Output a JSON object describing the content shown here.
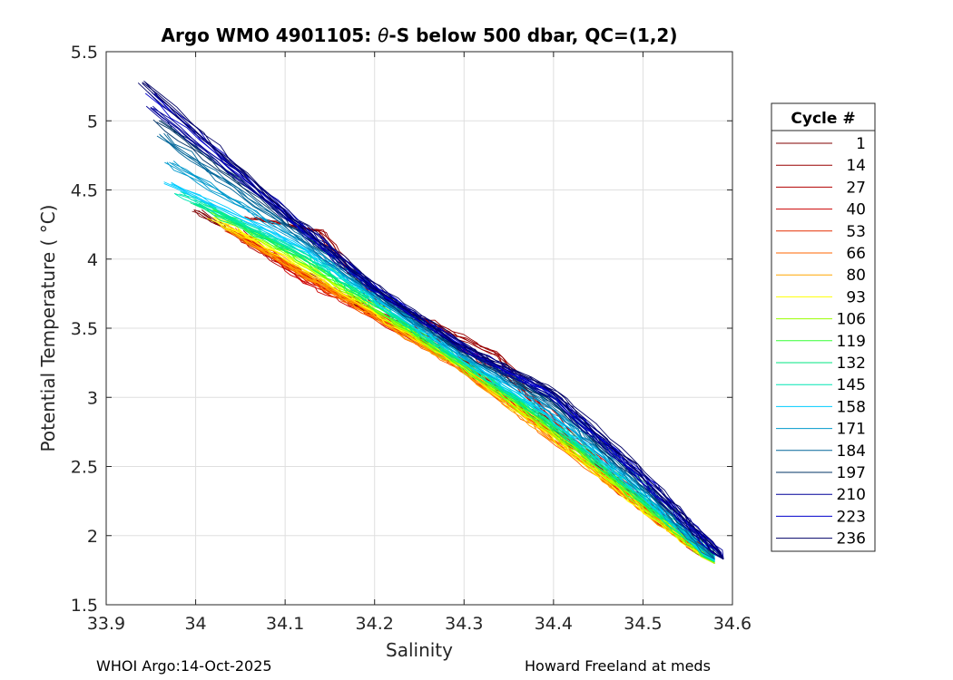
{
  "chart_data": {
    "type": "line",
    "title_prefix": "Argo WMO 4901105: ",
    "title_symbol": "θ",
    "title_suffix": "-S below 500 dbar,  QC=(1,2)",
    "xlabel": "Salinity",
    "ylabel": "Potential Temperature ( °C)",
    "xlim": [
      33.9,
      34.6
    ],
    "ylim": [
      1.5,
      5.5
    ],
    "xticks": [
      33.9,
      34,
      34.1,
      34.2,
      34.3,
      34.4,
      34.5,
      34.6
    ],
    "xtick_labels": [
      "33.9",
      "34",
      "34.1",
      "34.2",
      "34.3",
      "34.4",
      "34.5",
      "34.6"
    ],
    "yticks": [
      1.5,
      2,
      2.5,
      3,
      3.5,
      4,
      4.5,
      5,
      5.5
    ],
    "ytick_labels": [
      "1.5",
      "2",
      "2.5",
      "3",
      "3.5",
      "4",
      "4.5",
      "5",
      "5.5"
    ],
    "grid": true,
    "legend_title": "Cycle #",
    "legend_position": "right-outside",
    "series": [
      {
        "name": "1",
        "color": "#800000",
        "points": [
          [
            34.0,
            4.35
          ],
          [
            34.08,
            4.05
          ],
          [
            34.2,
            3.6
          ],
          [
            34.3,
            3.25
          ],
          [
            34.4,
            2.75
          ],
          [
            34.5,
            2.25
          ],
          [
            34.58,
            1.82
          ]
        ]
      },
      {
        "name": "14",
        "color": "#990000",
        "points": [
          [
            34.06,
            4.3
          ],
          [
            34.14,
            4.2
          ],
          [
            34.2,
            3.7
          ],
          [
            34.26,
            3.55
          ],
          [
            34.34,
            3.3
          ],
          [
            34.4,
            2.78
          ],
          [
            34.5,
            2.25
          ],
          [
            34.58,
            1.82
          ]
        ]
      },
      {
        "name": "27",
        "color": "#b30000",
        "points": [
          [
            34.05,
            4.15
          ],
          [
            34.1,
            3.95
          ],
          [
            34.2,
            3.62
          ],
          [
            34.3,
            3.35
          ],
          [
            34.35,
            3.15
          ],
          [
            34.45,
            2.55
          ],
          [
            34.58,
            1.8
          ]
        ]
      },
      {
        "name": "40",
        "color": "#cc0000",
        "points": [
          [
            34.05,
            4.2
          ],
          [
            34.12,
            3.85
          ],
          [
            34.2,
            3.58
          ],
          [
            34.3,
            3.22
          ],
          [
            34.4,
            2.75
          ],
          [
            34.5,
            2.22
          ],
          [
            34.58,
            1.8
          ]
        ]
      },
      {
        "name": "53",
        "color": "#e62e00",
        "points": [
          [
            34.04,
            4.2
          ],
          [
            34.12,
            3.9
          ],
          [
            34.2,
            3.6
          ],
          [
            34.3,
            3.2
          ],
          [
            34.4,
            2.72
          ],
          [
            34.5,
            2.2
          ],
          [
            34.58,
            1.8
          ]
        ]
      },
      {
        "name": "66",
        "color": "#ff6600",
        "points": [
          [
            34.04,
            4.22
          ],
          [
            34.12,
            3.88
          ],
          [
            34.2,
            3.58
          ],
          [
            34.3,
            3.2
          ],
          [
            34.4,
            2.7
          ],
          [
            34.5,
            2.2
          ],
          [
            34.58,
            1.8
          ]
        ]
      },
      {
        "name": "80",
        "color": "#ffa500",
        "points": [
          [
            34.03,
            4.25
          ],
          [
            34.12,
            3.9
          ],
          [
            34.2,
            3.6
          ],
          [
            34.3,
            3.2
          ],
          [
            34.4,
            2.7
          ],
          [
            34.5,
            2.2
          ],
          [
            34.58,
            1.8
          ]
        ]
      },
      {
        "name": "93",
        "color": "#ffff00",
        "points": [
          [
            34.02,
            4.3
          ],
          [
            34.12,
            3.95
          ],
          [
            34.2,
            3.62
          ],
          [
            34.3,
            3.22
          ],
          [
            34.4,
            2.72
          ],
          [
            34.5,
            2.2
          ],
          [
            34.58,
            1.8
          ]
        ]
      },
      {
        "name": "106",
        "color": "#99ff00",
        "points": [
          [
            34.02,
            4.35
          ],
          [
            34.12,
            3.98
          ],
          [
            34.2,
            3.64
          ],
          [
            34.3,
            3.22
          ],
          [
            34.4,
            2.75
          ],
          [
            34.5,
            2.22
          ],
          [
            34.58,
            1.8
          ]
        ]
      },
      {
        "name": "119",
        "color": "#33ff33",
        "points": [
          [
            34.01,
            4.4
          ],
          [
            34.12,
            4.0
          ],
          [
            34.2,
            3.66
          ],
          [
            34.3,
            3.24
          ],
          [
            34.4,
            2.78
          ],
          [
            34.5,
            2.24
          ],
          [
            34.58,
            1.81
          ]
        ]
      },
      {
        "name": "132",
        "color": "#00e680",
        "points": [
          [
            34.0,
            4.4
          ],
          [
            34.12,
            4.02
          ],
          [
            34.2,
            3.68
          ],
          [
            34.3,
            3.25
          ],
          [
            34.4,
            2.8
          ],
          [
            34.5,
            2.26
          ],
          [
            34.58,
            1.81
          ]
        ]
      },
      {
        "name": "145",
        "color": "#00e6b3",
        "points": [
          [
            33.98,
            4.48
          ],
          [
            34.12,
            4.05
          ],
          [
            34.2,
            3.7
          ],
          [
            34.3,
            3.26
          ],
          [
            34.4,
            2.82
          ],
          [
            34.5,
            2.28
          ],
          [
            34.58,
            1.82
          ]
        ]
      },
      {
        "name": "158",
        "color": "#00ccff",
        "points": [
          [
            33.97,
            4.55
          ],
          [
            34.12,
            4.08
          ],
          [
            34.2,
            3.72
          ],
          [
            34.3,
            3.28
          ],
          [
            34.4,
            2.85
          ],
          [
            34.5,
            2.3
          ],
          [
            34.58,
            1.82
          ]
        ]
      },
      {
        "name": "171",
        "color": "#0099cc",
        "points": [
          [
            33.97,
            4.7
          ],
          [
            34.1,
            4.2
          ],
          [
            34.2,
            3.74
          ],
          [
            34.3,
            3.3
          ],
          [
            34.4,
            2.9
          ],
          [
            34.5,
            2.32
          ],
          [
            34.58,
            1.83
          ]
        ]
      },
      {
        "name": "184",
        "color": "#006699",
        "points": [
          [
            33.96,
            4.9
          ],
          [
            34.1,
            4.25
          ],
          [
            34.2,
            3.76
          ],
          [
            34.3,
            3.32
          ],
          [
            34.4,
            2.95
          ],
          [
            34.5,
            2.35
          ],
          [
            34.58,
            1.83
          ]
        ]
      },
      {
        "name": "197",
        "color": "#003366",
        "points": [
          [
            33.96,
            5.0
          ],
          [
            34.1,
            4.3
          ],
          [
            34.2,
            3.78
          ],
          [
            34.3,
            3.33
          ],
          [
            34.4,
            2.98
          ],
          [
            34.5,
            2.38
          ],
          [
            34.59,
            1.83
          ]
        ]
      },
      {
        "name": "210",
        "color": "#000099",
        "points": [
          [
            33.95,
            5.1
          ],
          [
            34.1,
            4.32
          ],
          [
            34.2,
            3.78
          ],
          [
            34.3,
            3.35
          ],
          [
            34.4,
            3.0
          ],
          [
            34.5,
            2.4
          ],
          [
            34.59,
            1.83
          ]
        ]
      },
      {
        "name": "223",
        "color": "#0000cc",
        "points": [
          [
            33.95,
            5.2
          ],
          [
            34.1,
            4.34
          ],
          [
            34.2,
            3.79
          ],
          [
            34.3,
            3.36
          ],
          [
            34.4,
            3.02
          ],
          [
            34.5,
            2.42
          ],
          [
            34.59,
            1.83
          ]
        ]
      },
      {
        "name": "236",
        "color": "#000066",
        "points": [
          [
            33.94,
            5.28
          ],
          [
            34.1,
            4.35
          ],
          [
            34.2,
            3.8
          ],
          [
            34.3,
            3.37
          ],
          [
            34.4,
            3.05
          ],
          [
            34.5,
            2.45
          ],
          [
            34.59,
            1.83
          ]
        ]
      }
    ]
  },
  "footer": {
    "left": "WHOI Argo:14-Oct-2025",
    "right": "Howard Freeland at meds"
  }
}
